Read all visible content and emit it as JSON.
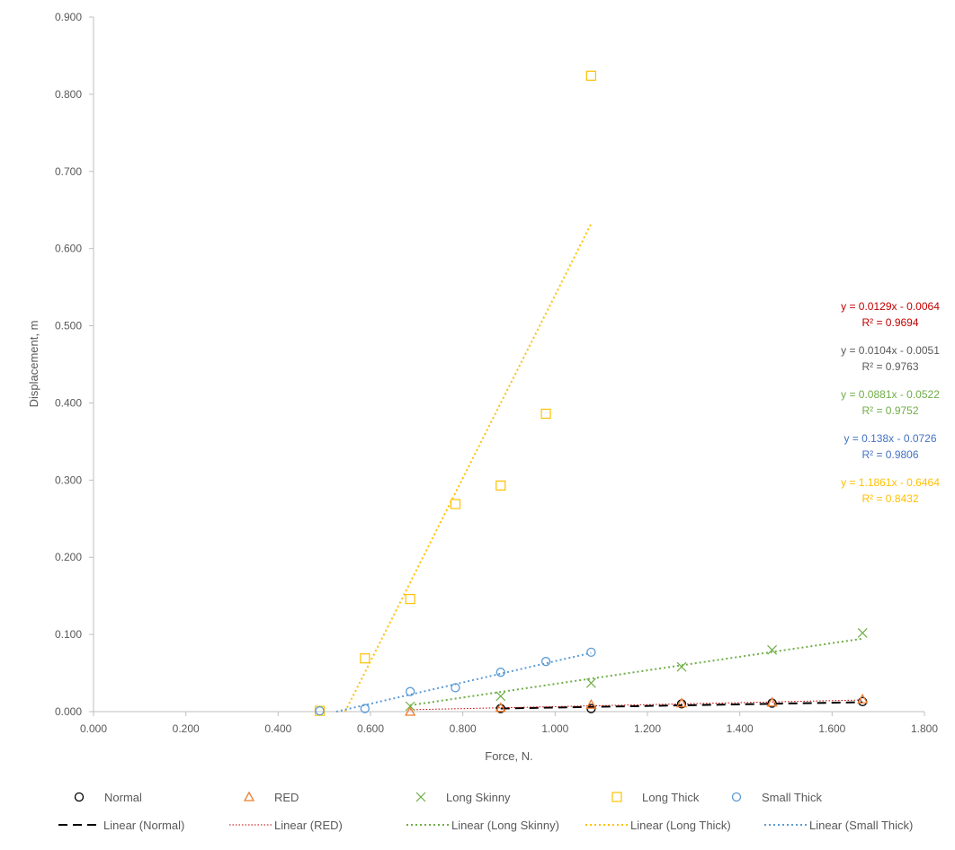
{
  "chart_data": {
    "type": "scatter",
    "title": "",
    "xlabel": "Force, N.",
    "ylabel": "Displacement, m",
    "xlim": [
      0,
      1.8
    ],
    "ylim": [
      0,
      0.9
    ],
    "xticks": [
      "0.000",
      "0.200",
      "0.400",
      "0.600",
      "0.800",
      "1.000",
      "1.200",
      "1.400",
      "1.600",
      "1.800"
    ],
    "yticks": [
      "0.000",
      "0.100",
      "0.200",
      "0.300",
      "0.400",
      "0.500",
      "0.600",
      "0.700",
      "0.800",
      "0.900"
    ],
    "grid": false,
    "legend": "bottom",
    "series": [
      {
        "name": "Normal",
        "marker": "circle",
        "color": "#000000",
        "x": [
          0.882,
          1.078,
          1.274,
          1.47,
          1.666
        ],
        "y": [
          0.004,
          0.004,
          0.01,
          0.011,
          0.013
        ],
        "trend": {
          "name": "Linear (Normal)",
          "slope": 0.0104,
          "intercept": -0.0051,
          "equation": "y = 0.0104x - 0.0051",
          "r2": "R² = 0.9763",
          "color": "#000000",
          "label_color": "#595959",
          "dash": "10,6"
        }
      },
      {
        "name": "RED",
        "marker": "triangle",
        "color": "#ed7d31",
        "x": [
          0.686,
          0.882,
          1.078,
          1.274,
          1.47,
          1.666
        ],
        "y": [
          0.0,
          0.005,
          0.009,
          0.011,
          0.012,
          0.016
        ],
        "trend": {
          "name": "Linear (RED)",
          "slope": 0.0129,
          "intercept": -0.0064,
          "equation": "y = 0.0129x - 0.0064",
          "r2": "R² = 0.9694",
          "color": "#c00000",
          "label_color": "#c00000",
          "dash": "1.5,2"
        }
      },
      {
        "name": "Long Skinny",
        "marker": "x",
        "color": "#70ad47",
        "x": [
          0.686,
          0.882,
          1.078,
          1.274,
          1.47,
          1.666
        ],
        "y": [
          0.007,
          0.02,
          0.037,
          0.058,
          0.08,
          0.102
        ],
        "trend": {
          "name": "Linear (Long Skinny)",
          "slope": 0.0881,
          "intercept": -0.0522,
          "equation": "y = 0.0881x - 0.0522",
          "r2": "R² = 0.9752",
          "color": "#70ad47",
          "label_color": "#70ad47",
          "dash": "2,3"
        }
      },
      {
        "name": "Long Thick",
        "marker": "square",
        "color": "#ffc000",
        "x": [
          0.49,
          0.588,
          0.686,
          0.784,
          0.882,
          0.98,
          1.078
        ],
        "y": [
          0.001,
          0.069,
          0.146,
          0.269,
          0.293,
          0.386,
          0.824
        ],
        "trend": {
          "name": "Linear (Long Thick)",
          "slope": 1.1861,
          "intercept": -0.6464,
          "equation": "y = 1.1861x - 0.6464",
          "r2": "R² = 0.8432",
          "color": "#ffc000",
          "label_color": "#ffc000",
          "dash": "2,3"
        }
      },
      {
        "name": "Small Thick",
        "marker": "circle",
        "color": "#5b9bd5",
        "x": [
          0.49,
          0.588,
          0.686,
          0.784,
          0.882,
          0.98,
          1.078
        ],
        "y": [
          0.001,
          0.004,
          0.026,
          0.031,
          0.051,
          0.065,
          0.077
        ],
        "trend": {
          "name": "Linear (Small Thick)",
          "slope": 0.138,
          "intercept": -0.0726,
          "equation": "y = 0.138x - 0.0726",
          "r2": "R² = 0.9806",
          "color": "#5b9bd5",
          "label_color": "#4472c4",
          "dash": "2,3"
        }
      }
    ]
  }
}
